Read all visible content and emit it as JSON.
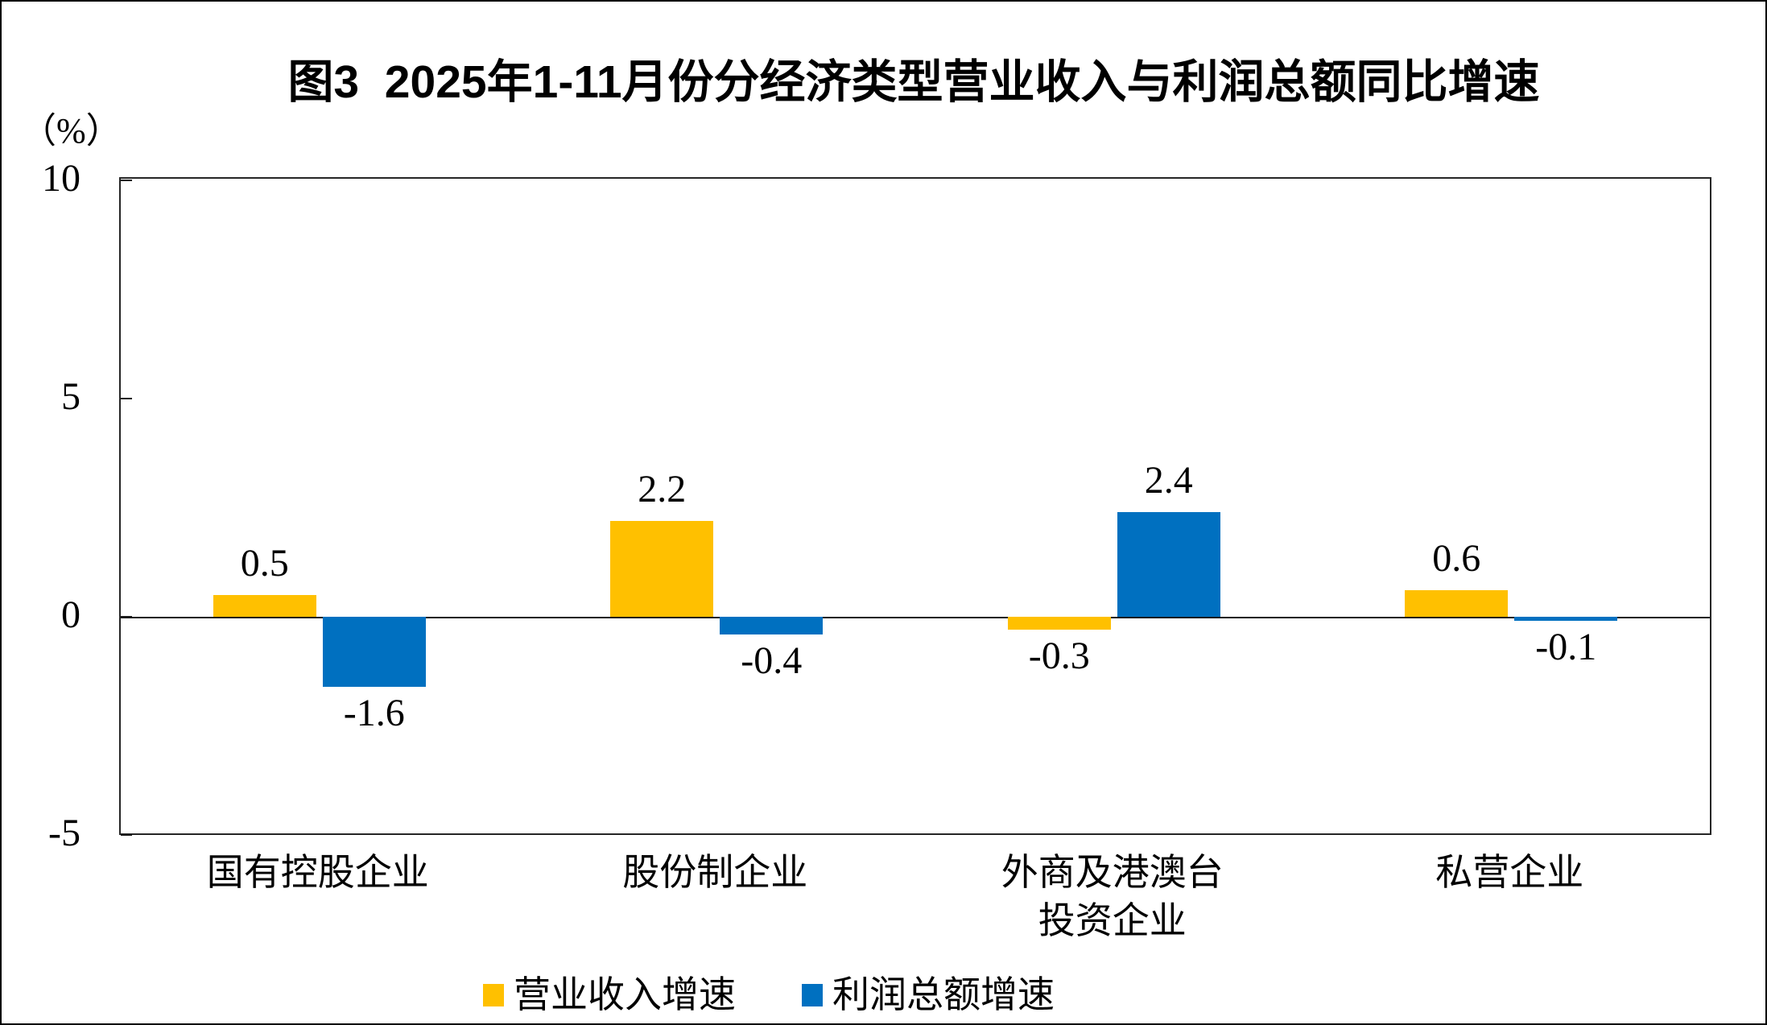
{
  "title": "图3  2025年1-11月份分经济类型营业收入与利润总额同比增速",
  "y_axis": {
    "unit": "（%）",
    "tick_labels": [
      "10",
      "5",
      "0",
      "-5"
    ]
  },
  "chart_data": {
    "type": "bar",
    "title": "图3  2025年1-11月份分经济类型营业收入与利润总额同比增速",
    "categories": [
      "国有控股企业",
      "股份制企业",
      "外商及港澳台\n投资企业",
      "私营企业"
    ],
    "series": [
      {
        "name": "营业收入增速",
        "color": "#FFC000",
        "values": [
          0.5,
          2.2,
          -0.3,
          0.6
        ]
      },
      {
        "name": "利润总额增速",
        "color": "#0070C0",
        "values": [
          -1.6,
          -0.4,
          2.4,
          -0.1
        ]
      }
    ],
    "data_labels": [
      [
        "0.5",
        "2.2",
        "-0.3",
        "0.6"
      ],
      [
        "-1.6",
        "-0.4",
        "2.4",
        "-0.1"
      ]
    ],
    "ylabel": "（%）",
    "xlabel": "",
    "ylim": [
      -5,
      10
    ],
    "yticks": [
      10,
      5,
      0,
      -5
    ],
    "grid": false,
    "zero_line": true,
    "legend_position": "bottom"
  },
  "colors": {
    "revenue_series": "#FFC000",
    "profit_series": "#0070C0",
    "axis": "#262626",
    "text": "#000000",
    "background": "#FFFFFF"
  }
}
